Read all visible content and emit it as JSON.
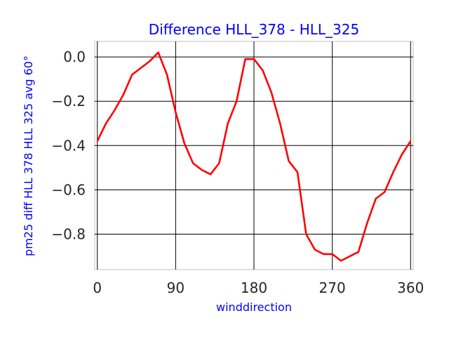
{
  "chart_data": {
    "type": "line",
    "title": "Difference HLL_378 - HLL_325",
    "xlabel": "winddirection",
    "ylabel": "pm25 diff HLL 378 HLL 325 avg 60°",
    "xlim": [
      -3,
      363
    ],
    "ylim": [
      -0.96,
      0.07
    ],
    "xticks": [
      0,
      90,
      180,
      270,
      360
    ],
    "xtick_labels": [
      "0",
      "90",
      "180",
      "270",
      "360"
    ],
    "yticks": [
      0.0,
      -0.2,
      -0.4,
      -0.6,
      -0.8
    ],
    "ytick_labels": [
      "0.0",
      "−0.2",
      "−0.4",
      "−0.6",
      "−0.8"
    ],
    "grid": true,
    "colors": {
      "series": "#ff0000",
      "grid": "#000000",
      "frame": "#cccccc",
      "title": "#0000ff",
      "axis_label": "#0000ff",
      "tick_label": "#262626"
    },
    "series": [
      {
        "x": [
          0,
          10,
          20,
          30,
          40,
          50,
          60,
          70,
          80,
          90,
          100,
          110,
          120,
          130,
          140,
          150,
          160,
          170,
          180,
          190,
          200,
          210,
          220,
          230,
          240,
          250,
          260,
          270,
          280,
          290,
          300,
          310,
          320,
          330,
          340,
          350,
          360
        ],
        "y": [
          -0.38,
          -0.3,
          -0.24,
          -0.17,
          -0.08,
          -0.05,
          -0.02,
          0.02,
          -0.08,
          -0.25,
          -0.39,
          -0.48,
          -0.51,
          -0.53,
          -0.48,
          -0.3,
          -0.2,
          -0.01,
          -0.01,
          -0.06,
          -0.16,
          -0.3,
          -0.47,
          -0.52,
          -0.8,
          -0.87,
          -0.89,
          -0.89,
          -0.92,
          -0.9,
          -0.88,
          -0.75,
          -0.64,
          -0.61,
          -0.52,
          -0.44,
          -0.38
        ]
      }
    ]
  }
}
